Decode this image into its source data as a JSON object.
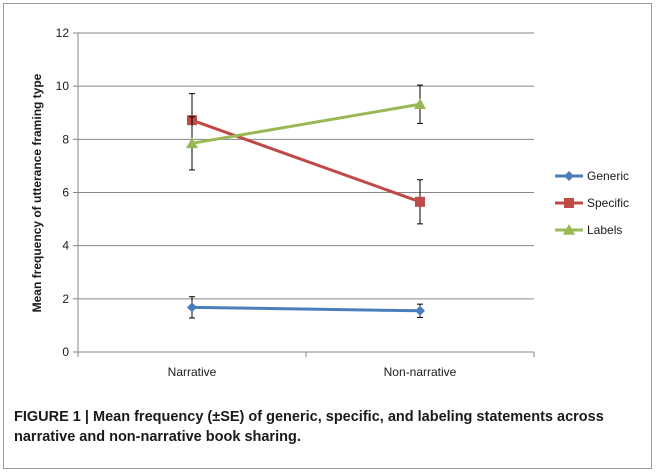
{
  "chart_data": {
    "type": "line",
    "title": "",
    "xlabel": "",
    "ylabel": "Mean frequency of utterance framing type",
    "categories": [
      "Narrative",
      "Non-narrative"
    ],
    "ylim": [
      0,
      12
    ],
    "yticks": [
      0,
      2,
      4,
      6,
      8,
      10,
      12
    ],
    "grid": true,
    "legend_position": "right",
    "series": [
      {
        "name": "Generic",
        "values": [
          1.68,
          1.55
        ],
        "error": [
          0.4,
          0.25
        ],
        "color": "#4a7ebb",
        "marker": "diamond"
      },
      {
        "name": "Specific",
        "values": [
          8.72,
          5.65
        ],
        "error": [
          1.0,
          0.83
        ],
        "color": "#be4b48",
        "marker": "square"
      },
      {
        "name": "Labels",
        "values": [
          7.85,
          9.32
        ],
        "error": [
          1.0,
          0.72
        ],
        "color": "#98b954",
        "marker": "triangle"
      }
    ]
  },
  "caption": {
    "prefix": "FIGURE 1 | ",
    "text": "Mean frequency (±SE) of generic, specific, and labeling statements across narrative and non-narrative book sharing."
  }
}
